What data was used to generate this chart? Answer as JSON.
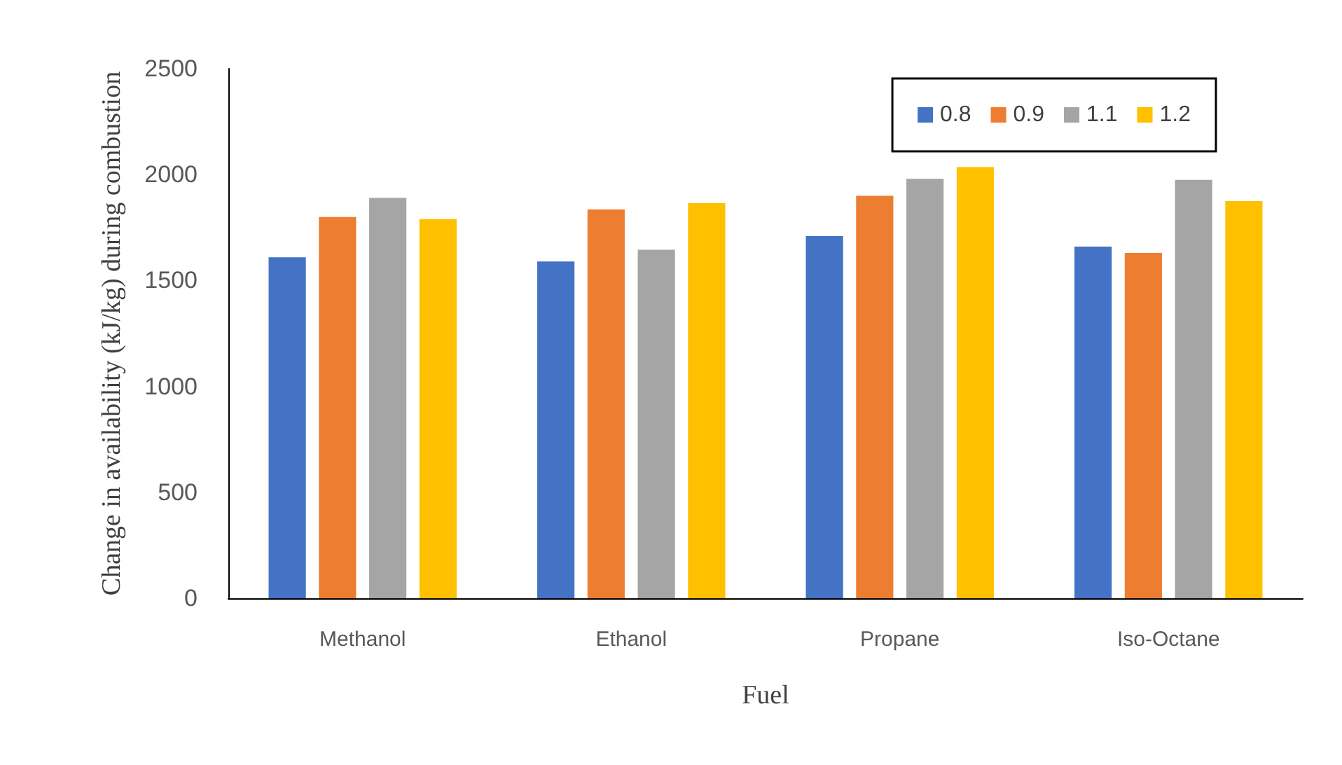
{
  "chart_data": {
    "type": "bar",
    "xlabel": "Fuel",
    "ylabel": "Change in availability (kJ/kg) during combustion",
    "categories": [
      "Methanol",
      "Ethanol",
      "Propane",
      "Iso-Octane"
    ],
    "series": [
      {
        "name": "0.8",
        "color": "#4472c4",
        "values": [
          1610,
          1590,
          1710,
          1660
        ]
      },
      {
        "name": "0.9",
        "color": "#ed7d31",
        "values": [
          1800,
          1835,
          1900,
          1630
        ]
      },
      {
        "name": "1.1",
        "color": "#a5a5a5",
        "values": [
          1890,
          1645,
          1980,
          1975
        ]
      },
      {
        "name": "1.2",
        "color": "#ffc000",
        "values": [
          1790,
          1865,
          2035,
          1875
        ]
      }
    ],
    "ylim": [
      0,
      2500
    ],
    "yticks": [
      0,
      500,
      1000,
      1500,
      2000,
      2500
    ],
    "grid": false,
    "legend": "top right"
  }
}
